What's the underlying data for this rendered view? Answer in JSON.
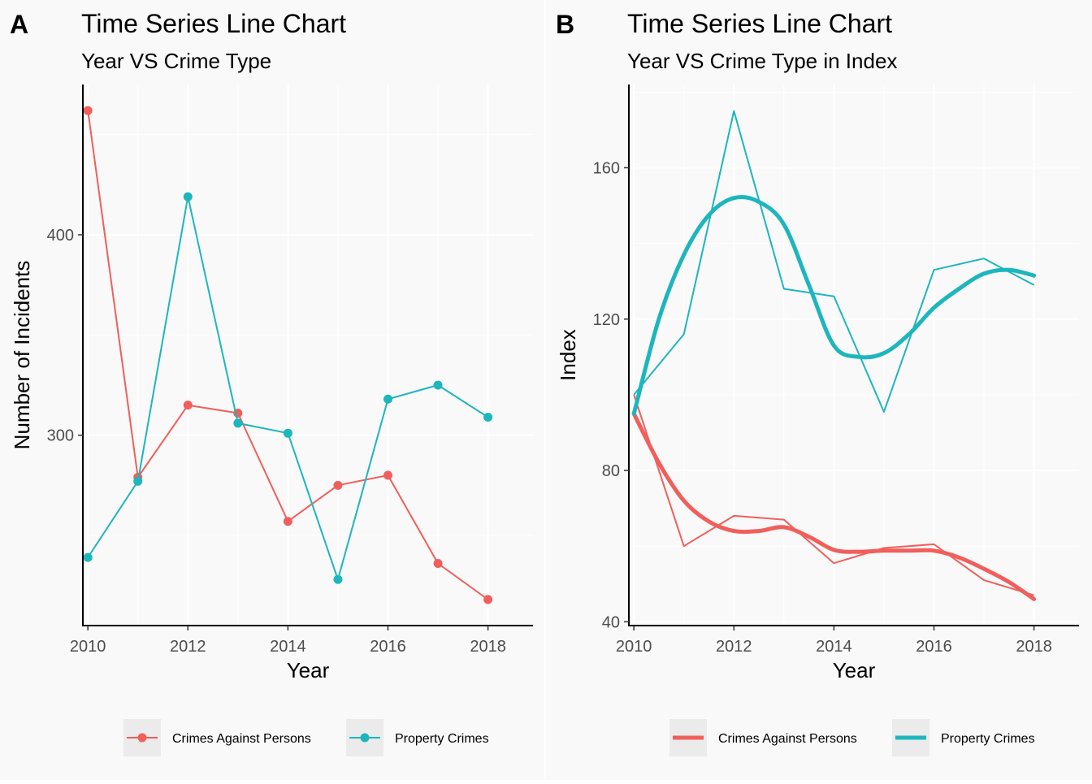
{
  "colors": {
    "persons": "#F05F5B",
    "property": "#1DB6BD",
    "panel_bg": "#F9F9F9"
  },
  "chart_data": [
    {
      "tag": "A",
      "type": "line",
      "title": "Time Series Line Chart",
      "subtitle": "Year VS Crime Type",
      "xlabel": "Year",
      "ylabel": "Number of Incidents",
      "xlim": [
        2009.9,
        2018.9
      ],
      "ylim": [
        205,
        475
      ],
      "xticks": [
        2010,
        2012,
        2014,
        2016,
        2018
      ],
      "yticks": [
        300,
        400
      ],
      "x": [
        2010,
        2011,
        2012,
        2013,
        2014,
        2015,
        2016,
        2017,
        2018
      ],
      "series": [
        {
          "name": "Crimes Against Persons",
          "color": "#F05F5B",
          "values": [
            462,
            279,
            315,
            311,
            257,
            275,
            280,
            236,
            218
          ]
        },
        {
          "name": "Property Crimes",
          "color": "#1DB6BD",
          "values": [
            239,
            277,
            419,
            306,
            301,
            228,
            318,
            325,
            309
          ]
        }
      ],
      "show_points": true,
      "grid": true,
      "legend": {
        "position": "bottom",
        "entries": [
          "Crimes Against Persons",
          "Property Crimes"
        ]
      }
    },
    {
      "tag": "B",
      "type": "line",
      "title": "Time Series Line Chart",
      "subtitle": "Year VS Crime Type in Index",
      "xlabel": "Year",
      "ylabel": "Index",
      "xlim": [
        2009.9,
        2018.9
      ],
      "ylim": [
        39,
        182
      ],
      "xticks": [
        2010,
        2012,
        2014,
        2016,
        2018
      ],
      "yticks": [
        40,
        80,
        120,
        160
      ],
      "x": [
        2010,
        2011,
        2012,
        2013,
        2014,
        2015,
        2016,
        2017,
        2018
      ],
      "series": [
        {
          "name": "Crimes Against Persons",
          "color": "#F05F5B",
          "values": [
            100,
            60,
            68,
            67,
            55.5,
            59.5,
            60.5,
            51,
            47
          ]
        },
        {
          "name": "Property Crimes",
          "color": "#1DB6BD",
          "values": [
            100,
            116,
            175,
            128,
            126,
            95.5,
            133,
            136,
            129
          ]
        }
      ],
      "smooth_series": [
        {
          "name": "Crimes Against Persons",
          "color": "#F05F5B",
          "x": [
            2010,
            2010.5,
            2011,
            2011.5,
            2012,
            2012.5,
            2013,
            2013.5,
            2014,
            2014.5,
            2015,
            2015.5,
            2016,
            2016.5,
            2017,
            2017.5,
            2018
          ],
          "values": [
            95,
            82,
            72,
            66.5,
            64,
            64,
            65,
            62.5,
            59,
            58.5,
            58.8,
            58.8,
            58.8,
            57,
            54,
            50.5,
            46
          ]
        },
        {
          "name": "Property Crimes",
          "color": "#1DB6BD",
          "x": [
            2010,
            2010.5,
            2011,
            2011.5,
            2012,
            2012.5,
            2013,
            2013.5,
            2014,
            2014.5,
            2015,
            2015.5,
            2016,
            2016.5,
            2017,
            2017.5,
            2018
          ],
          "values": [
            95,
            120,
            137,
            147.5,
            152,
            151,
            145,
            129,
            113,
            110,
            111,
            116,
            123,
            128,
            132,
            133,
            131.5
          ]
        }
      ],
      "show_points": false,
      "grid": true,
      "legend": {
        "position": "bottom",
        "entries": [
          "Crimes Against Persons",
          "Property Crimes"
        ]
      }
    }
  ]
}
